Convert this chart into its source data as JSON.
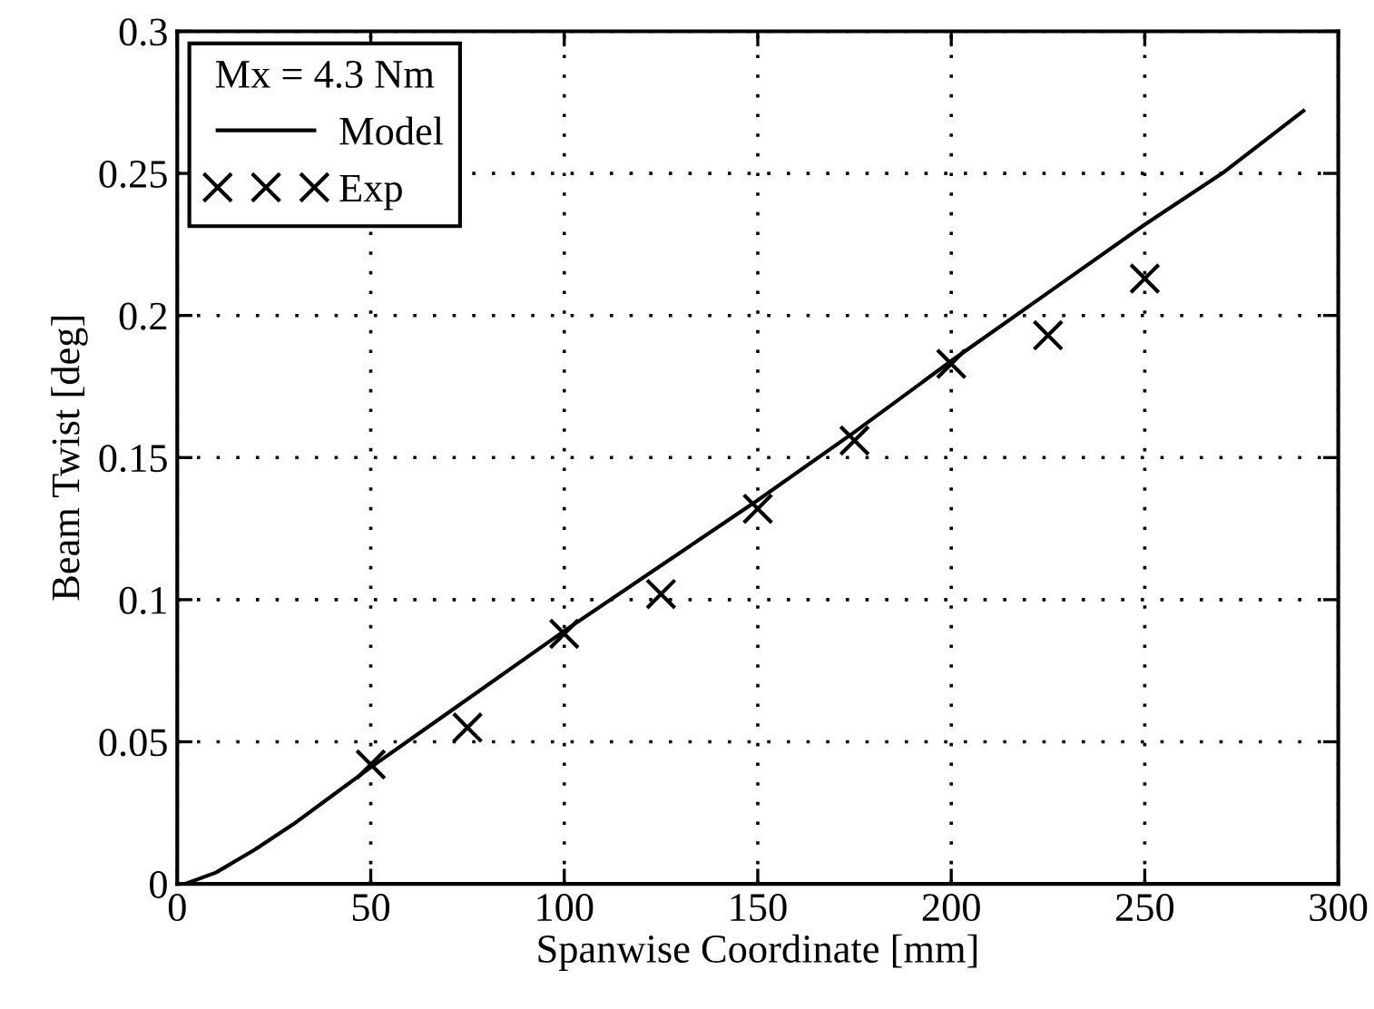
{
  "chart_data": {
    "type": "line",
    "xlabel": "Spanwise Coordinate [mm]",
    "ylabel": "Beam Twist [deg]",
    "legend_title": "Mx = 4.3 Nm",
    "xlim": [
      0,
      300
    ],
    "xticks": [
      0,
      50,
      100,
      150,
      200,
      250,
      300
    ],
    "ylim": [
      0,
      0.3
    ],
    "yticks": [
      0,
      0.05,
      0.1,
      0.15,
      0.2,
      0.25,
      0.3
    ],
    "grid": true,
    "legend": "top left",
    "series": [
      {
        "name": "Model",
        "color": "#000000",
        "marker": "none",
        "line_style": "solid",
        "x": [
          0,
          2,
          10,
          20,
          30,
          40,
          50,
          75,
          100,
          125,
          150,
          175,
          200,
          225,
          250,
          270,
          291
        ],
        "values": [
          0,
          0,
          0.004,
          0.012,
          0.021,
          0.031,
          0.041,
          0.065,
          0.089,
          0.112,
          0.135,
          0.159,
          0.184,
          0.208,
          0.232,
          0.25,
          0.272
        ]
      },
      {
        "name": "Exp",
        "type": "scatter",
        "color": "#000000",
        "marker": "cross",
        "x": [
          50,
          75,
          100,
          125,
          150,
          175,
          200,
          225,
          250
        ],
        "values": [
          0.042,
          0.055,
          0.088,
          0.102,
          0.132,
          0.156,
          0.183,
          0.193,
          0.213
        ]
      }
    ]
  }
}
